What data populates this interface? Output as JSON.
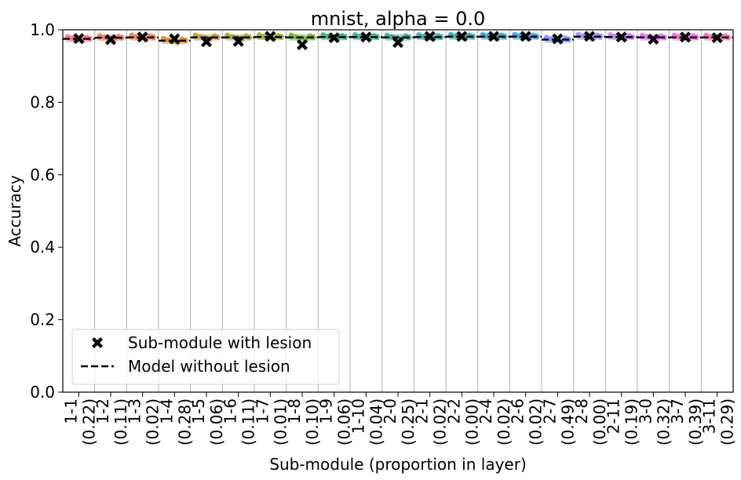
{
  "chart_data": {
    "type": "scatter",
    "title": "mnist, alpha = 0.0",
    "xlabel": "Sub-module (proportion in layer)",
    "ylabel": "Accuracy",
    "ylim": [
      0,
      1.0
    ],
    "yticks": [
      "0.0",
      "0.2",
      "0.4",
      "0.6",
      "0.8",
      "1.0"
    ],
    "grid": "vertical",
    "categories": [
      {
        "id": "1-1",
        "prop": "(0.22)",
        "lesion": 0.976,
        "color": "#f77189",
        "base": 0.975
      },
      {
        "id": "1-2",
        "prop": "(0.11)",
        "lesion": 0.973,
        "color": "#f2786b",
        "base": 0.978
      },
      {
        "id": "1-3",
        "prop": "(0.02)",
        "lesion": 0.98,
        "color": "#e9824b",
        "base": 0.979
      },
      {
        "id": "1-4",
        "prop": "(0.28)",
        "lesion": 0.975,
        "color": "#d5902f",
        "base": 0.97
      },
      {
        "id": "1-5",
        "prop": "(0.06)",
        "lesion": 0.967,
        "color": "#c29a30",
        "base": 0.979
      },
      {
        "id": "1-6",
        "prop": "(0.11)",
        "lesion": 0.968,
        "color": "#aea130",
        "base": 0.979
      },
      {
        "id": "1-7",
        "prop": "(0.01)",
        "lesion": 0.982,
        "color": "#97a930",
        "base": 0.98
      },
      {
        "id": "1-8",
        "prop": "(0.10)",
        "lesion": 0.959,
        "color": "#73b131",
        "base": 0.979
      },
      {
        "id": "1-9",
        "prop": "(0.06)",
        "lesion": 0.978,
        "color": "#33b07a",
        "base": 0.98
      },
      {
        "id": "1-10",
        "prop": "(0.04)",
        "lesion": 0.98,
        "color": "#35ad8f",
        "base": 0.98
      },
      {
        "id": "2-0",
        "prop": "(0.25)",
        "lesion": 0.965,
        "color": "#36ab9c",
        "base": 0.979
      },
      {
        "id": "2-1",
        "prop": "(0.02)",
        "lesion": 0.982,
        "color": "#38a9a9",
        "base": 0.98
      },
      {
        "id": "2-2",
        "prop": "(0.00)",
        "lesion": 0.982,
        "color": "#3aa7b5",
        "base": 0.981
      },
      {
        "id": "2-4",
        "prop": "(0.02)",
        "lesion": 0.982,
        "color": "#3ca5c3",
        "base": 0.981
      },
      {
        "id": "2-6",
        "prop": "(0.02)",
        "lesion": 0.982,
        "color": "#41a0dc",
        "base": 0.981
      },
      {
        "id": "2-7",
        "prop": "(0.49)",
        "lesion": 0.975,
        "color": "#7e91f4",
        "base": 0.973
      },
      {
        "id": "2-8",
        "prop": "(0.00)",
        "lesion": 0.982,
        "color": "#a38cf4",
        "base": 0.981
      },
      {
        "id": "2-11",
        "prop": "(0.19)",
        "lesion": 0.98,
        "color": "#c27ff4",
        "base": 0.98
      },
      {
        "id": "3-0",
        "prop": "(0.32)",
        "lesion": 0.974,
        "color": "#e16ef3",
        "base": 0.979
      },
      {
        "id": "3-7",
        "prop": "(0.39)",
        "lesion": 0.98,
        "color": "#f263da",
        "base": 0.979
      },
      {
        "id": "3-11",
        "prop": "(0.29)",
        "lesion": 0.978,
        "color": "#f66bb4",
        "base": 0.979
      }
    ],
    "legend": {
      "placement": "lower-left",
      "entries": [
        {
          "label": "Sub-module with lesion",
          "marker": "x-marker"
        },
        {
          "label": "Model without lesion",
          "marker": "dashed-line"
        }
      ]
    }
  }
}
